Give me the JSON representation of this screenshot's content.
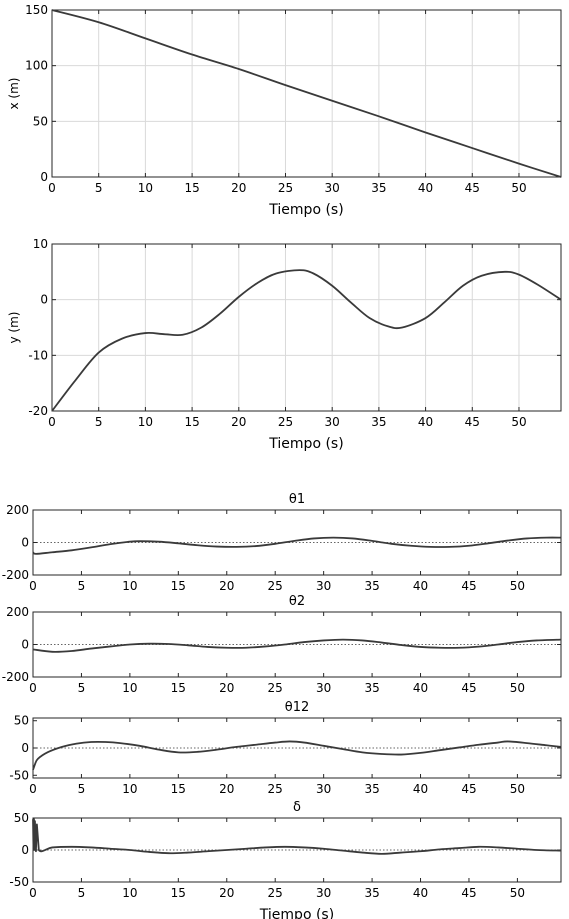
{
  "chart_data": [
    {
      "type": "line",
      "title": "",
      "xlabel": "Tiempo (s)",
      "ylabel": "x (m)",
      "xlim": [
        0,
        54.5
      ],
      "ylim": [
        0,
        150
      ],
      "xticks": [
        0,
        5,
        10,
        15,
        20,
        25,
        30,
        35,
        40,
        45,
        50
      ],
      "yticks": [
        0,
        50,
        100,
        150
      ],
      "grid": true,
      "series": [
        {
          "x": [
            0,
            5,
            10,
            15,
            20,
            25,
            30,
            35,
            40,
            45,
            50,
            54.5
          ],
          "y": [
            150,
            139,
            124.5,
            110,
            97,
            82.5,
            68.5,
            54.5,
            40,
            26,
            12,
            0
          ]
        }
      ]
    },
    {
      "type": "line",
      "title": "",
      "xlabel": "Tiempo (s)",
      "ylabel": "y (m)",
      "xlim": [
        0,
        54.5
      ],
      "ylim": [
        -20,
        10
      ],
      "xticks": [
        0,
        5,
        10,
        15,
        20,
        25,
        30,
        35,
        40,
        45,
        50
      ],
      "yticks": [
        -20,
        -10,
        0,
        10
      ],
      "grid": true,
      "series": [
        {
          "x": [
            0,
            2.5,
            5,
            7.5,
            10,
            12,
            14,
            16,
            18,
            20,
            22,
            24,
            26.5,
            28,
            30,
            32,
            34,
            36,
            37.5,
            40,
            42,
            44,
            46,
            48.5,
            50,
            52,
            54.5
          ],
          "y": [
            -20,
            -14.5,
            -9.5,
            -7,
            -6,
            -6.2,
            -6.3,
            -5,
            -2.5,
            0.5,
            3,
            4.7,
            5.3,
            4.7,
            2.5,
            -0.5,
            -3.3,
            -4.8,
            -5,
            -3.3,
            -0.5,
            2.5,
            4.3,
            5,
            4.5,
            2.7,
            0
          ]
        }
      ]
    },
    {
      "type": "line",
      "title": "θ1",
      "xlabel": "",
      "ylabel": "",
      "xlim": [
        0,
        54.5
      ],
      "ylim": [
        -200,
        200
      ],
      "xticks": [
        0,
        5,
        10,
        15,
        20,
        25,
        30,
        35,
        40,
        45,
        50
      ],
      "yticks": [
        -200,
        0,
        200
      ],
      "grid": false,
      "zero_line": "dotted",
      "series": [
        {
          "x": [
            0,
            0.3,
            2,
            4,
            6,
            8,
            10,
            11,
            13,
            15,
            17,
            19,
            21,
            23,
            25,
            27,
            29,
            31,
            33,
            35,
            37,
            39,
            41,
            43,
            45,
            47,
            49,
            51,
            53,
            54.5
          ],
          "y": [
            -60,
            -70,
            -60,
            -48,
            -30,
            -10,
            5,
            8,
            5,
            -5,
            -17,
            -25,
            -27,
            -22,
            -8,
            10,
            25,
            30,
            25,
            10,
            -8,
            -20,
            -27,
            -27,
            -20,
            -5,
            12,
            25,
            30,
            30
          ]
        }
      ]
    },
    {
      "type": "line",
      "title": "θ2",
      "xlabel": "",
      "ylabel": "",
      "xlim": [
        0,
        54.5
      ],
      "ylim": [
        -200,
        200
      ],
      "xticks": [
        0,
        5,
        10,
        15,
        20,
        25,
        30,
        35,
        40,
        45,
        50
      ],
      "yticks": [
        -200,
        0,
        200
      ],
      "grid": false,
      "zero_line": "dotted",
      "series": [
        {
          "x": [
            0,
            2,
            4,
            6,
            8,
            10,
            12,
            14,
            16,
            18,
            20,
            22,
            24,
            26,
            28,
            30,
            32,
            34,
            36,
            38,
            40,
            42,
            44,
            46,
            48,
            50,
            52,
            54.5
          ],
          "y": [
            -30,
            -45,
            -40,
            -25,
            -12,
            0,
            5,
            3,
            -5,
            -15,
            -20,
            -20,
            -12,
            0,
            15,
            25,
            30,
            25,
            12,
            -3,
            -15,
            -20,
            -20,
            -13,
            0,
            15,
            25,
            30
          ]
        }
      ]
    },
    {
      "type": "line",
      "title": "θ12",
      "xlabel": "",
      "ylabel": "",
      "xlim": [
        0,
        54.5
      ],
      "ylim": [
        -55,
        55
      ],
      "xticks": [
        0,
        5,
        10,
        15,
        20,
        25,
        30,
        35,
        40,
        45,
        50
      ],
      "yticks": [
        -50,
        0,
        50
      ],
      "grid": false,
      "zero_line": "dotted",
      "series": [
        {
          "x": [
            0,
            0.2,
            0.5,
            1.5,
            3,
            4.5,
            6,
            7.5,
            9,
            11,
            13,
            15,
            17,
            19,
            21,
            23,
            25,
            26.5,
            28,
            30,
            32,
            34,
            36,
            38,
            40,
            42,
            44,
            46,
            48,
            49,
            51,
            53,
            54.5
          ],
          "y": [
            -40,
            -30,
            -20,
            -8,
            2,
            8,
            11,
            11,
            9,
            4,
            -3,
            -8,
            -7,
            -3,
            2,
            6,
            10,
            12,
            10,
            4,
            -2,
            -8,
            -11,
            -12,
            -9,
            -4,
            1,
            6,
            10,
            12,
            9,
            5,
            2
          ]
        }
      ]
    },
    {
      "type": "line",
      "title": "δ",
      "xlabel": "Tiempo (s)",
      "ylabel": "",
      "xlim": [
        0,
        54.5
      ],
      "ylim": [
        -50,
        50
      ],
      "xticks": [
        0,
        5,
        10,
        15,
        20,
        25,
        30,
        35,
        40,
        45,
        50
      ],
      "yticks": [
        -50,
        0,
        50
      ],
      "grid": false,
      "zero_line": "dotted",
      "series": [
        {
          "x": [
            0,
            0.05,
            0.1,
            0.15,
            0.2,
            0.3,
            0.4,
            0.6,
            2,
            4,
            6,
            8,
            10,
            12,
            14,
            16,
            18,
            20,
            22,
            24,
            26,
            28,
            30,
            32,
            34,
            36,
            38,
            40,
            42,
            44,
            46,
            48,
            50,
            52,
            54.5
          ],
          "y": [
            48,
            0,
            48,
            0,
            45,
            -2,
            40,
            0,
            4,
            5,
            4,
            2,
            0,
            -3,
            -5,
            -4,
            -2,
            0,
            2,
            4,
            5,
            4,
            2,
            -1,
            -4,
            -6,
            -4,
            -2,
            1,
            3,
            5,
            4,
            2,
            0,
            -1
          ]
        }
      ]
    }
  ]
}
